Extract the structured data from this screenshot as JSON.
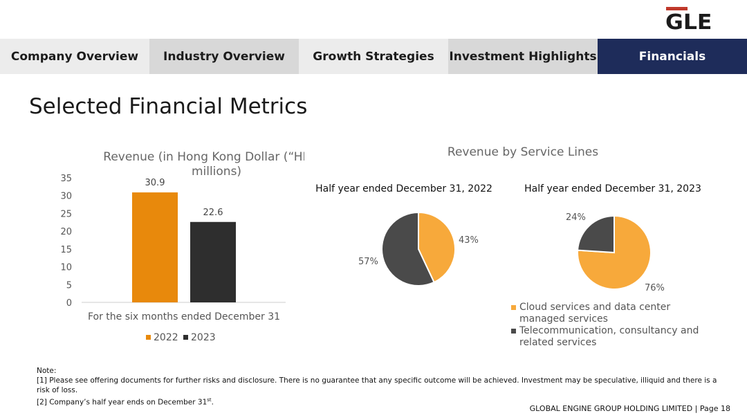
{
  "logo": {
    "text": "GLE",
    "accent_color": "#c0392b"
  },
  "nav": {
    "tabs": [
      {
        "label": "Company Overview",
        "active": false
      },
      {
        "label": "Industry Overview",
        "active": false
      },
      {
        "label": "Growth Strategies",
        "active": false
      },
      {
        "label": "Investment Highlights",
        "active": false
      },
      {
        "label": "Financials",
        "active": true
      }
    ],
    "active_color": "#1e2c5a"
  },
  "page_title": "Selected Financial Metrics",
  "chart_data": [
    {
      "type": "bar",
      "title": "Revenue (in Hong Kong Dollar (“HKD”) millions)",
      "title_lines": [
        "Revenue (in Hong Kong Dollar (“HKD”)",
        "millions)"
      ],
      "xlabel": "For the six months ended December 31",
      "ylabel": "",
      "ylim": [
        0,
        35
      ],
      "yticks": [
        0,
        5,
        10,
        15,
        20,
        25,
        30,
        35
      ],
      "series": [
        {
          "name": "2022",
          "values": [
            30.9
          ],
          "color": "#e8890c",
          "label": "30.9"
        },
        {
          "name": "2023",
          "values": [
            22.6
          ],
          "color": "#2e2e2e",
          "label": "22.6"
        }
      ],
      "grid": false,
      "legend": "bottom"
    },
    {
      "type": "pie",
      "group_title": "Revenue by Service Lines",
      "title": "Half year ended December 31, 2022",
      "slices": [
        {
          "name": "Cloud services and data center managed services",
          "value": 43,
          "label": "43%",
          "color": "#f7a93b"
        },
        {
          "name": "Telecommunication, consultancy and related services",
          "value": 57,
          "label": "57%",
          "color": "#4a4a4a"
        }
      ]
    },
    {
      "type": "pie",
      "title": "Half year ended December 31, 2023",
      "slices": [
        {
          "name": "Cloud services and data center managed services",
          "value": 76,
          "label": "76%",
          "color": "#f7a93b"
        },
        {
          "name": "Telecommunication, consultancy and related services",
          "value": 24,
          "label": "24%",
          "color": "#4a4a4a"
        }
      ],
      "legend": "bottom"
    }
  ],
  "pie_legend": [
    {
      "lines": [
        "Cloud services and data center",
        "managed services"
      ],
      "color": "#f7a93b"
    },
    {
      "lines": [
        "Telecommunication, consultancy and",
        "related services"
      ],
      "color": "#4a4a4a"
    }
  ],
  "note": {
    "heading": "Note:",
    "lines": [
      "[1] Please see offering documents for further risks and disclosure. There is no guarantee that any specific outcome will be achieved. Investment may be speculative, illiquid and there is a risk of loss.",
      "[2] Company’s half year ends on December 31"
    ],
    "superscript": "st",
    "suffix": "."
  },
  "footer": "GLOBAL ENGINE GROUP HOLDING LIMITED | Page 18"
}
